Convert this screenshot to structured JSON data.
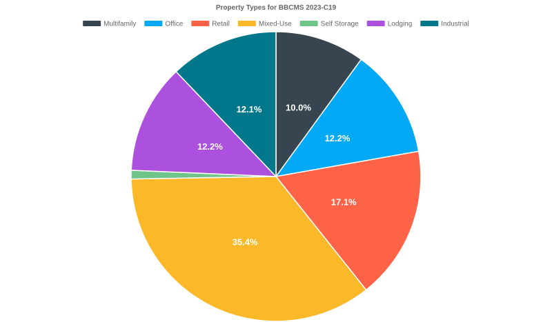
{
  "chart_data": {
    "type": "pie",
    "title": "Property Types for BBCMS 2023-C19",
    "legend_position": "top",
    "slices": [
      {
        "name": "Multifamily",
        "value": 10.0,
        "label": "10.0%",
        "color": "#36454f"
      },
      {
        "name": "Office",
        "value": 12.2,
        "label": "12.2%",
        "color": "#03a9f4"
      },
      {
        "name": "Retail",
        "value": 17.1,
        "label": "17.1%",
        "color": "#ff6347"
      },
      {
        "name": "Mixed-Use",
        "value": 35.4,
        "label": "35.4%",
        "color": "#fbb829"
      },
      {
        "name": "Self Storage",
        "value": 0.96,
        "label": "",
        "color": "#6fc48a"
      },
      {
        "name": "Lodging",
        "value": 12.2,
        "label": "12.2%",
        "color": "#ac51dd"
      },
      {
        "name": "Industrial",
        "value": 12.1,
        "label": "12.1%",
        "color": "#00778b"
      }
    ]
  }
}
